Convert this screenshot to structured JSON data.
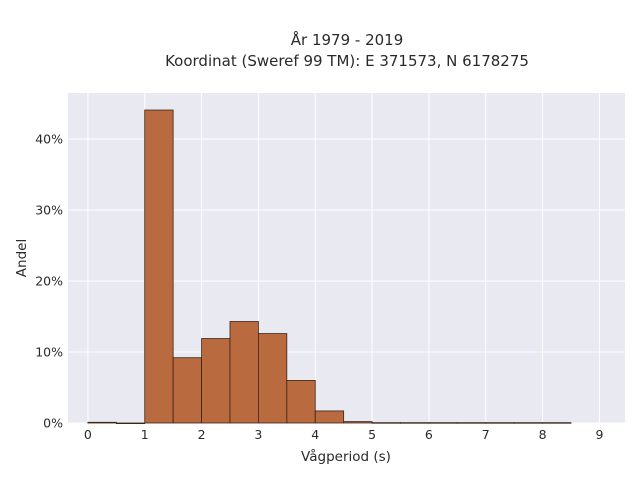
{
  "chart_data": {
    "type": "bar",
    "title": "År 1979 - 2019",
    "subtitle": "Koordinat (Sweref 99 TM): E 371573, N 6178275",
    "xlabel": "Vågperiod (s)",
    "ylabel": "Andel",
    "bin_width": 0.5,
    "bins": [
      {
        "start": 0.0,
        "value": 0.1
      },
      {
        "start": 0.5,
        "value": 0.0
      },
      {
        "start": 1.0,
        "value": 44.1
      },
      {
        "start": 1.5,
        "value": 9.2
      },
      {
        "start": 2.0,
        "value": 11.9
      },
      {
        "start": 2.5,
        "value": 14.3
      },
      {
        "start": 3.0,
        "value": 12.6
      },
      {
        "start": 3.5,
        "value": 6.0
      },
      {
        "start": 4.0,
        "value": 1.7
      },
      {
        "start": 4.5,
        "value": 0.2
      },
      {
        "start": 5.0,
        "value": 0.05
      },
      {
        "start": 5.5,
        "value": 0.05
      },
      {
        "start": 6.0,
        "value": 0.05
      },
      {
        "start": 6.5,
        "value": 0.05
      },
      {
        "start": 7.0,
        "value": 0.05
      },
      {
        "start": 7.5,
        "value": 0.05
      },
      {
        "start": 8.0,
        "value": 0.05
      }
    ],
    "xlim": [
      -0.35,
      9.45
    ],
    "ylim": [
      0,
      46.5
    ],
    "xticks": [
      0,
      1,
      2,
      3,
      4,
      5,
      6,
      7,
      8,
      9
    ],
    "yticks": [
      {
        "value": 0,
        "label": "0%"
      },
      {
        "value": 10,
        "label": "10%"
      },
      {
        "value": 20,
        "label": "20%"
      },
      {
        "value": 30,
        "label": "30%"
      },
      {
        "value": 40,
        "label": "40%"
      }
    ],
    "grid": true,
    "colors": {
      "bar_fill": "#b96a3f",
      "bar_stroke": "#3b2416",
      "plot_bg": "#e9e9f2",
      "grid": "#ffffff"
    }
  }
}
